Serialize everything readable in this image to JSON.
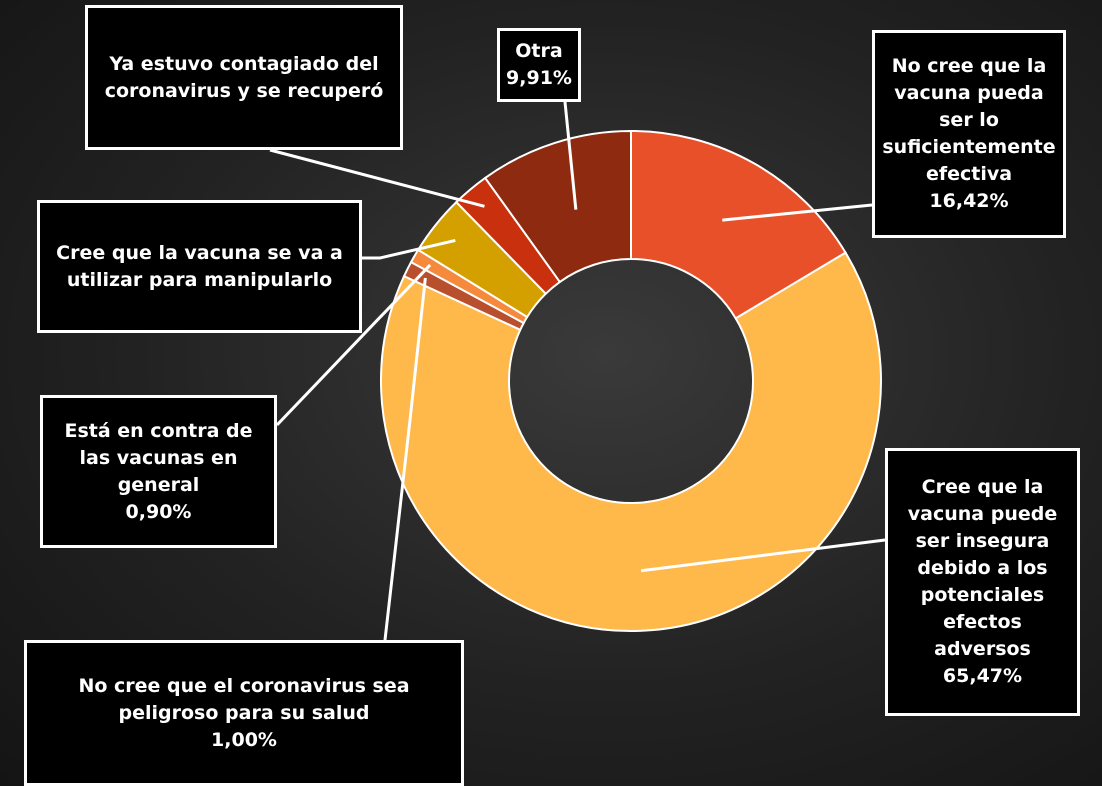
{
  "chart_data": {
    "type": "donut",
    "categories": [
      "No cree que la vacuna pueda ser lo suficientemente efectiva",
      "Cree que la vacuna puede ser insegura debido a los potenciales efectos adversos",
      "No cree que el coronavirus sea peligroso para su salud",
      "Está en contra de las vacunas en general",
      "Cree que la vacuna se va a utilizar para manipularlo",
      "Ya estuvo contagiado del coronavirus y se recuperó",
      "Otra"
    ],
    "values": [
      16.42,
      65.47,
      1.0,
      0.9,
      3.9,
      2.4,
      9.91
    ],
    "value_labels": [
      "16,42%",
      "65,47%",
      "1,00%",
      "0,90%",
      null,
      null,
      "9,91%"
    ],
    "colors": [
      "#e8502a",
      "#ffb84a",
      "#b8502e",
      "#f58a3c",
      "#d4a000",
      "#c8300e",
      "#8e2a10"
    ]
  }
}
